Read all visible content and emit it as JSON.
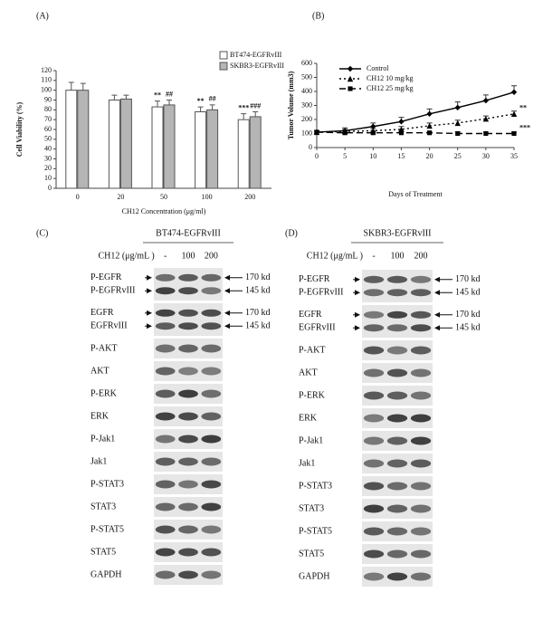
{
  "chart_data": [
    {
      "type": "bar",
      "panel": "(A)",
      "xlabel": "CH12 Concentration (μg/ml)",
      "ylabel": "Cell Viability (%)",
      "categories": [
        "0",
        "20",
        "50",
        "100",
        "200"
      ],
      "series": [
        {
          "name": "BT474-EGFRvIII",
          "color": "#ffffff",
          "values": [
            100,
            90,
            83,
            78,
            70
          ],
          "errors": [
            8,
            5,
            6,
            5,
            6
          ],
          "significance": [
            null,
            null,
            "**",
            "**",
            "***"
          ]
        },
        {
          "name": "SKBR3-EGFRvIII",
          "color": "#b5b5b5",
          "values": [
            100,
            91,
            85,
            80,
            73
          ],
          "errors": [
            7,
            4,
            5,
            5,
            5
          ],
          "significance": [
            null,
            null,
            "##",
            "##",
            "###"
          ]
        }
      ],
      "ylim": [
        0,
        120
      ],
      "yticks": [
        0,
        10,
        20,
        30,
        40,
        50,
        60,
        70,
        80,
        90,
        100,
        110,
        120
      ],
      "legend": "upper right"
    },
    {
      "type": "line",
      "panel": "(B)",
      "xlabel": "Days of Treatment",
      "ylabel": "Tumor Volume (mm3)",
      "x": [
        0,
        5,
        10,
        15,
        20,
        25,
        30,
        35
      ],
      "series": [
        {
          "name": "Control",
          "color": "#000000",
          "dash": null,
          "marker": "diamond",
          "values": [
            110,
            120,
            150,
            185,
            240,
            285,
            335,
            395
          ],
          "errors": [
            10,
            20,
            25,
            30,
            35,
            40,
            40,
            45
          ],
          "end_label": null
        },
        {
          "name": "CH12 10 mg/kg",
          "color": "#000000",
          "dash": "2,3",
          "marker": "triangle",
          "values": [
            110,
            115,
            120,
            130,
            155,
            175,
            205,
            240
          ],
          "errors": [
            10,
            15,
            15,
            20,
            20,
            20,
            20,
            20
          ],
          "end_label": "**"
        },
        {
          "name": "CH12 25 mg/kg",
          "color": "#000000",
          "dash": "7,4",
          "marker": "square",
          "values": [
            110,
            105,
            105,
            105,
            105,
            100,
            100,
            100
          ],
          "errors": [
            10,
            10,
            10,
            10,
            10,
            10,
            10,
            10
          ],
          "end_label": "***"
        }
      ],
      "xlim": [
        0,
        35
      ],
      "xticks": [
        0,
        5,
        10,
        15,
        20,
        25,
        30,
        35
      ],
      "ylim": [
        0,
        600
      ],
      "yticks": [
        0,
        100,
        200,
        300,
        400,
        500,
        600
      ],
      "legend": "upper left"
    }
  ],
  "blots": [
    {
      "panel": "(C)",
      "title": "BT474-EGFRvIII",
      "dose_label": "CH12 (μg/mL )",
      "doses": [
        "-",
        "100",
        "200"
      ],
      "rows": [
        {
          "labels": [
            "P-EGFR",
            "P-EGFRvIII"
          ],
          "sizes": [
            "170 kd",
            "145 kd"
          ]
        },
        {
          "labels": [
            "EGFR",
            "EGFRvIII"
          ],
          "sizes": [
            "170 kd",
            "145 kd"
          ]
        },
        {
          "labels": [
            "P-AKT"
          ]
        },
        {
          "labels": [
            "AKT"
          ]
        },
        {
          "labels": [
            "P-ERK"
          ]
        },
        {
          "labels": [
            "ERK"
          ]
        },
        {
          "labels": [
            "P-Jak1"
          ]
        },
        {
          "labels": [
            "Jak1"
          ]
        },
        {
          "labels": [
            "P-STAT3"
          ]
        },
        {
          "labels": [
            "STAT3"
          ]
        },
        {
          "labels": [
            "P-STAT5"
          ]
        },
        {
          "labels": [
            "STAT5"
          ]
        },
        {
          "labels": [
            "GAPDH"
          ]
        }
      ]
    },
    {
      "panel": "(D)",
      "title": "SKBR3-EGFRvIII",
      "dose_label": "CH12 (μg/mL )",
      "doses": [
        "-",
        "100",
        "200"
      ],
      "rows": [
        {
          "labels": [
            "P-EGFR",
            "P-EGFRvIII"
          ],
          "sizes": [
            "170 kd",
            "145 kd"
          ]
        },
        {
          "labels": [
            "EGFR",
            "EGFRvIII"
          ],
          "sizes": [
            "170 kd",
            "145 kd"
          ]
        },
        {
          "labels": [
            "P-AKT"
          ]
        },
        {
          "labels": [
            "AKT"
          ]
        },
        {
          "labels": [
            "P-ERK"
          ]
        },
        {
          "labels": [
            "ERK"
          ]
        },
        {
          "labels": [
            "P-Jak1"
          ]
        },
        {
          "labels": [
            "Jak1"
          ]
        },
        {
          "labels": [
            "P-STAT3"
          ]
        },
        {
          "labels": [
            "STAT3"
          ]
        },
        {
          "labels": [
            "P-STAT5"
          ]
        },
        {
          "labels": [
            "STAT5"
          ]
        },
        {
          "labels": [
            "GAPDH"
          ]
        }
      ]
    }
  ]
}
